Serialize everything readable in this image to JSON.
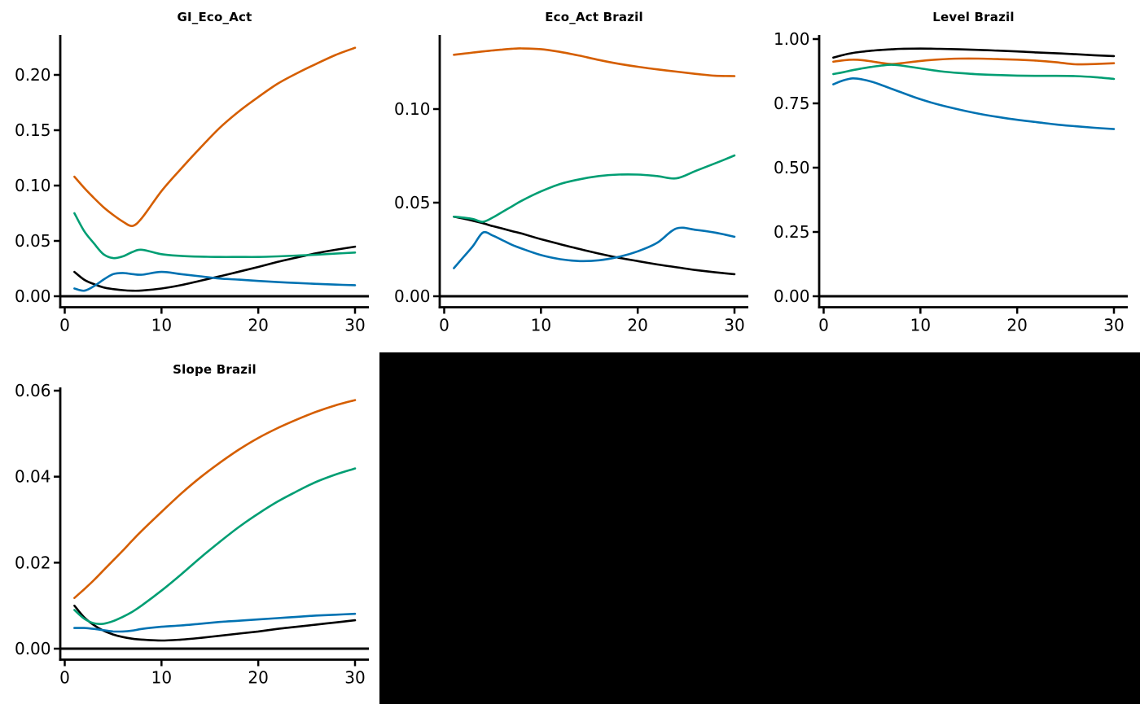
{
  "figure": {
    "background_color": "#ffffff",
    "blank_panel_color": "#000000"
  },
  "palette": {
    "black": "#000000",
    "orange": "#d55e00",
    "green": "#009e73",
    "blue": "#0072b2"
  },
  "chart_data": [
    {
      "type": "line",
      "title": "GI_Eco_Act",
      "xlabel": "",
      "ylabel": "",
      "xlim": [
        0,
        31
      ],
      "ylim": [
        -0.01,
        0.236
      ],
      "xticks": [
        0,
        10,
        20,
        30
      ],
      "xtick_labels": [
        "0",
        "10",
        "20",
        "30"
      ],
      "yticks": [
        0.0,
        0.05,
        0.1,
        0.15,
        0.2
      ],
      "ytick_labels": [
        "0.00",
        "0.05",
        "0.10",
        "0.15",
        "0.20"
      ],
      "grid": false,
      "legend": "none",
      "zero_line": true,
      "x": [
        1,
        2,
        3,
        4,
        5,
        6,
        7,
        8,
        10,
        12,
        14,
        16,
        18,
        20,
        22,
        24,
        26,
        28,
        30
      ],
      "series": [
        {
          "name": "black",
          "color": "#000000",
          "values": [
            0.022,
            0.015,
            0.011,
            0.008,
            0.0065,
            0.0055,
            0.005,
            0.0052,
            0.007,
            0.01,
            0.014,
            0.018,
            0.0222,
            0.0265,
            0.031,
            0.035,
            0.0388,
            0.042,
            0.0448
          ]
        },
        {
          "name": "orange",
          "color": "#d55e00",
          "values": [
            0.108,
            0.098,
            0.089,
            0.0805,
            0.0735,
            0.0675,
            0.0635,
            0.071,
            0.095,
            0.115,
            0.134,
            0.152,
            0.167,
            0.18,
            0.192,
            0.2015,
            0.21,
            0.218,
            0.2245
          ]
        },
        {
          "name": "green",
          "color": "#009e73",
          "values": [
            0.075,
            0.059,
            0.048,
            0.038,
            0.0345,
            0.036,
            0.04,
            0.042,
            0.038,
            0.0365,
            0.0358,
            0.0355,
            0.0355,
            0.0355,
            0.036,
            0.0368,
            0.0375,
            0.0385,
            0.0395
          ]
        },
        {
          "name": "blue",
          "color": "#0072b2",
          "values": [
            0.007,
            0.005,
            0.009,
            0.015,
            0.02,
            0.021,
            0.02,
            0.0195,
            0.022,
            0.02,
            0.018,
            0.016,
            0.015,
            0.0138,
            0.0128,
            0.012,
            0.0112,
            0.0105,
            0.01
          ]
        }
      ]
    },
    {
      "type": "line",
      "title": "Eco_Act Brazil",
      "xlabel": "",
      "ylabel": "",
      "xlim": [
        0,
        31
      ],
      "ylim": [
        -0.006,
        0.139
      ],
      "xticks": [
        0,
        10,
        20,
        30
      ],
      "xtick_labels": [
        "0",
        "10",
        "20",
        "30"
      ],
      "yticks": [
        0.0,
        0.05,
        0.1
      ],
      "ytick_labels": [
        "0.00",
        "0.05",
        "0.10"
      ],
      "grid": false,
      "legend": "none",
      "zero_line": true,
      "x": [
        1,
        2,
        3,
        4,
        5,
        6,
        7,
        8,
        10,
        12,
        14,
        16,
        18,
        20,
        22,
        24,
        26,
        28,
        30
      ],
      "series": [
        {
          "name": "black",
          "color": "#000000",
          "values": [
            0.0425,
            0.0415,
            0.0403,
            0.039,
            0.0375,
            0.0362,
            0.0348,
            0.0335,
            0.0305,
            0.0278,
            0.0252,
            0.0228,
            0.0206,
            0.0188,
            0.017,
            0.0155,
            0.014,
            0.0128,
            0.0118
          ]
        },
        {
          "name": "orange",
          "color": "#d55e00",
          "values": [
            0.129,
            0.1296,
            0.1302,
            0.1308,
            0.1313,
            0.1318,
            0.1322,
            0.1324,
            0.132,
            0.1305,
            0.1285,
            0.1262,
            0.1242,
            0.1226,
            0.1212,
            0.12,
            0.1188,
            0.1178,
            0.1176
          ]
        },
        {
          "name": "green",
          "color": "#009e73",
          "values": [
            0.0425,
            0.042,
            0.0412,
            0.0398,
            0.042,
            0.045,
            0.048,
            0.051,
            0.056,
            0.06,
            0.0625,
            0.0642,
            0.065,
            0.065,
            0.0642,
            0.063,
            0.067,
            0.071,
            0.0752
          ]
        },
        {
          "name": "blue",
          "color": "#0072b2",
          "values": [
            0.015,
            0.021,
            0.027,
            0.034,
            0.0325,
            0.03,
            0.0275,
            0.0255,
            0.022,
            0.0198,
            0.0188,
            0.0192,
            0.021,
            0.024,
            0.0285,
            0.0362,
            0.0355,
            0.034,
            0.0318
          ]
        }
      ]
    },
    {
      "type": "line",
      "title": "Level Brazil",
      "xlabel": "",
      "ylabel": "",
      "xlim": [
        0,
        31
      ],
      "ylim": [
        -0.043,
        1.016
      ],
      "xticks": [
        0,
        10,
        20,
        30
      ],
      "xtick_labels": [
        "0",
        "10",
        "20",
        "30"
      ],
      "yticks": [
        0.0,
        0.25,
        0.5,
        0.75,
        1.0
      ],
      "ytick_labels": [
        "0.00",
        "0.25",
        "0.50",
        "0.75",
        "1.00"
      ],
      "grid": false,
      "legend": "none",
      "zero_line": true,
      "x": [
        1,
        2,
        3,
        4,
        5,
        6,
        7,
        8,
        10,
        12,
        14,
        16,
        18,
        20,
        22,
        24,
        26,
        28,
        30
      ],
      "series": [
        {
          "name": "black",
          "color": "#000000",
          "values": [
            0.928,
            0.938,
            0.946,
            0.951,
            0.955,
            0.958,
            0.96,
            0.962,
            0.963,
            0.962,
            0.96,
            0.958,
            0.955,
            0.952,
            0.948,
            0.945,
            0.941,
            0.937,
            0.934
          ]
        },
        {
          "name": "orange",
          "color": "#d55e00",
          "values": [
            0.912,
            0.917,
            0.92,
            0.918,
            0.913,
            0.907,
            0.903,
            0.906,
            0.915,
            0.921,
            0.924,
            0.924,
            0.922,
            0.92,
            0.916,
            0.91,
            0.902,
            0.903,
            0.906
          ]
        },
        {
          "name": "green",
          "color": "#009e73",
          "values": [
            0.864,
            0.871,
            0.879,
            0.886,
            0.892,
            0.897,
            0.9,
            0.897,
            0.886,
            0.875,
            0.868,
            0.863,
            0.86,
            0.858,
            0.857,
            0.857,
            0.856,
            0.852,
            0.845
          ]
        },
        {
          "name": "blue",
          "color": "#0072b2",
          "values": [
            0.824,
            0.839,
            0.847,
            0.843,
            0.834,
            0.821,
            0.807,
            0.793,
            0.766,
            0.744,
            0.726,
            0.71,
            0.697,
            0.686,
            0.677,
            0.668,
            0.661,
            0.655,
            0.65
          ]
        }
      ]
    },
    {
      "type": "line",
      "title": "Slope Brazil",
      "xlabel": "",
      "ylabel": "",
      "xlim": [
        0,
        31
      ],
      "ylim": [
        -0.0026,
        0.0607
      ],
      "xticks": [
        0,
        10,
        20,
        30
      ],
      "xtick_labels": [
        "0",
        "10",
        "20",
        "30"
      ],
      "yticks": [
        0.0,
        0.02,
        0.04,
        0.06
      ],
      "ytick_labels": [
        "0.00",
        "0.02",
        "0.04",
        "0.06"
      ],
      "grid": false,
      "legend": "none",
      "zero_line": true,
      "x": [
        1,
        2,
        3,
        4,
        5,
        6,
        7,
        8,
        10,
        12,
        14,
        16,
        18,
        20,
        22,
        24,
        26,
        28,
        30
      ],
      "series": [
        {
          "name": "black",
          "color": "#000000",
          "values": [
            0.01,
            0.0073,
            0.0055,
            0.0042,
            0.0033,
            0.0027,
            0.0023,
            0.0021,
            0.0019,
            0.0021,
            0.0025,
            0.003,
            0.0035,
            0.004,
            0.0046,
            0.0051,
            0.0056,
            0.0061,
            0.0066
          ]
        },
        {
          "name": "orange",
          "color": "#d55e00",
          "values": [
            0.0118,
            0.0138,
            0.0159,
            0.0182,
            0.0205,
            0.0228,
            0.0252,
            0.0275,
            0.0318,
            0.036,
            0.0398,
            0.0432,
            0.0463,
            0.049,
            0.0513,
            0.0533,
            0.0551,
            0.0566,
            0.0578
          ]
        },
        {
          "name": "green",
          "color": "#009e73",
          "values": [
            0.009,
            0.007,
            0.0059,
            0.0058,
            0.0064,
            0.0074,
            0.0086,
            0.0101,
            0.0135,
            0.0172,
            0.0211,
            0.0248,
            0.0283,
            0.0314,
            0.0342,
            0.0366,
            0.0388,
            0.0405,
            0.0419
          ]
        },
        {
          "name": "blue",
          "color": "#0072b2",
          "values": [
            0.0048,
            0.0048,
            0.0046,
            0.0043,
            0.004,
            0.004,
            0.0042,
            0.0046,
            0.0051,
            0.0054,
            0.0058,
            0.0062,
            0.0065,
            0.0068,
            0.0071,
            0.0074,
            0.0077,
            0.0079,
            0.0081
          ]
        }
      ]
    }
  ]
}
